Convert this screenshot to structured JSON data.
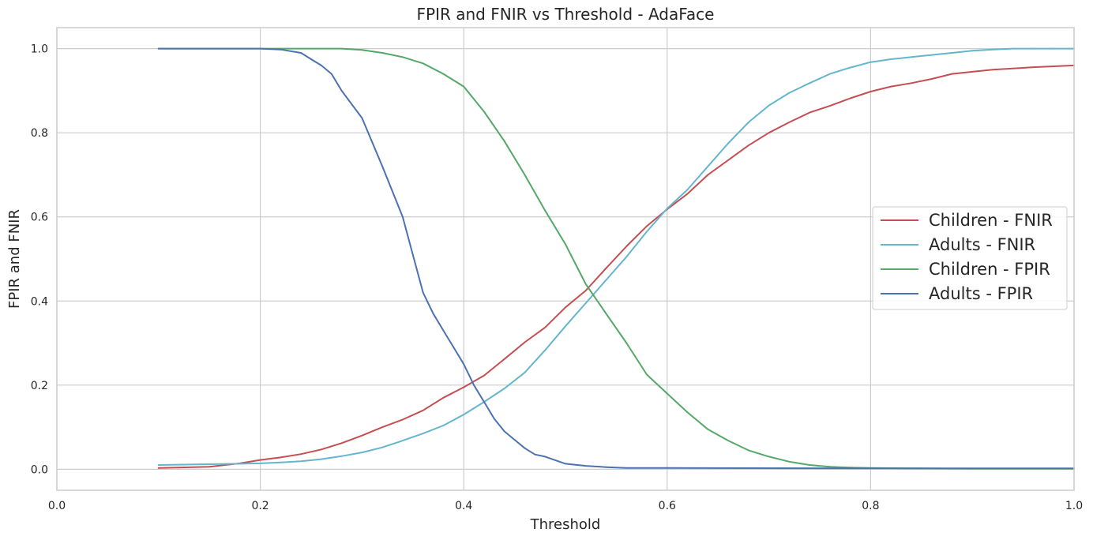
{
  "chart_data": {
    "type": "line",
    "title": "FPIR and FNIR vs Threshold - AdaFace",
    "xlabel": "Threshold",
    "ylabel": "FPIR and FNIR",
    "xlim": [
      0.0,
      1.0
    ],
    "ylim": [
      -0.05,
      1.05
    ],
    "xticks": [
      "0.0",
      "0.2",
      "0.4",
      "0.6",
      "0.8",
      "1.0"
    ],
    "yticks": [
      "0.0",
      "0.2",
      "0.4",
      "0.6",
      "0.8",
      "1.0"
    ],
    "grid": true,
    "legend_position": "center-right",
    "series": [
      {
        "name": "Children - FNIR",
        "color": "#c44e52",
        "x": [
          0.1,
          0.15,
          0.18,
          0.2,
          0.22,
          0.24,
          0.26,
          0.28,
          0.3,
          0.32,
          0.34,
          0.36,
          0.38,
          0.4,
          0.42,
          0.44,
          0.46,
          0.48,
          0.5,
          0.52,
          0.54,
          0.56,
          0.58,
          0.6,
          0.62,
          0.64,
          0.66,
          0.68,
          0.7,
          0.72,
          0.74,
          0.76,
          0.78,
          0.8,
          0.82,
          0.84,
          0.86,
          0.88,
          0.9,
          0.92,
          0.94,
          0.96,
          0.98,
          1.0
        ],
        "y": [
          0.003,
          0.006,
          0.014,
          0.022,
          0.028,
          0.036,
          0.047,
          0.062,
          0.08,
          0.1,
          0.118,
          0.14,
          0.17,
          0.195,
          0.223,
          0.262,
          0.302,
          0.337,
          0.385,
          0.425,
          0.478,
          0.53,
          0.578,
          0.618,
          0.655,
          0.7,
          0.735,
          0.77,
          0.8,
          0.825,
          0.848,
          0.864,
          0.882,
          0.898,
          0.91,
          0.918,
          0.928,
          0.94,
          0.945,
          0.95,
          0.953,
          0.956,
          0.958,
          0.96
        ]
      },
      {
        "name": "Adults - FNIR",
        "color": "#64b5cd",
        "x": [
          0.1,
          0.15,
          0.18,
          0.2,
          0.22,
          0.24,
          0.26,
          0.28,
          0.3,
          0.32,
          0.34,
          0.36,
          0.38,
          0.4,
          0.42,
          0.44,
          0.46,
          0.48,
          0.5,
          0.52,
          0.54,
          0.56,
          0.58,
          0.6,
          0.62,
          0.64,
          0.66,
          0.68,
          0.7,
          0.72,
          0.74,
          0.76,
          0.78,
          0.8,
          0.82,
          0.84,
          0.86,
          0.88,
          0.9,
          0.92,
          0.94,
          0.96,
          0.98,
          1.0
        ],
        "y": [
          0.01,
          0.012,
          0.013,
          0.014,
          0.016,
          0.019,
          0.024,
          0.031,
          0.04,
          0.052,
          0.068,
          0.085,
          0.104,
          0.13,
          0.16,
          0.192,
          0.23,
          0.283,
          0.34,
          0.395,
          0.45,
          0.505,
          0.565,
          0.62,
          0.665,
          0.72,
          0.775,
          0.825,
          0.865,
          0.895,
          0.918,
          0.94,
          0.955,
          0.968,
          0.975,
          0.98,
          0.985,
          0.99,
          0.995,
          0.998,
          1.0,
          1.0,
          1.0,
          1.0
        ]
      },
      {
        "name": "Children - FPIR",
        "color": "#55a868",
        "x": [
          0.1,
          0.2,
          0.25,
          0.28,
          0.3,
          0.32,
          0.34,
          0.36,
          0.38,
          0.4,
          0.42,
          0.44,
          0.46,
          0.48,
          0.5,
          0.52,
          0.54,
          0.56,
          0.58,
          0.6,
          0.62,
          0.64,
          0.66,
          0.68,
          0.7,
          0.72,
          0.74,
          0.76,
          0.78,
          0.8,
          0.85,
          0.9,
          1.0
        ],
        "y": [
          1.0,
          1.0,
          1.0,
          1.0,
          0.997,
          0.99,
          0.98,
          0.965,
          0.94,
          0.91,
          0.85,
          0.78,
          0.7,
          0.615,
          0.535,
          0.44,
          0.37,
          0.3,
          0.225,
          0.18,
          0.135,
          0.095,
          0.068,
          0.045,
          0.03,
          0.018,
          0.01,
          0.006,
          0.004,
          0.003,
          0.002,
          0.001,
          0.001
        ]
      },
      {
        "name": "Adults - FPIR",
        "color": "#4c72b0",
        "x": [
          0.1,
          0.2,
          0.22,
          0.24,
          0.25,
          0.26,
          0.27,
          0.28,
          0.3,
          0.32,
          0.34,
          0.35,
          0.36,
          0.37,
          0.38,
          0.39,
          0.4,
          0.41,
          0.42,
          0.43,
          0.44,
          0.45,
          0.46,
          0.47,
          0.48,
          0.5,
          0.52,
          0.54,
          0.56,
          0.6,
          0.8,
          1.0
        ],
        "y": [
          1.0,
          1.0,
          0.998,
          0.99,
          0.975,
          0.96,
          0.94,
          0.9,
          0.835,
          0.72,
          0.6,
          0.51,
          0.42,
          0.37,
          0.33,
          0.29,
          0.25,
          0.2,
          0.16,
          0.12,
          0.09,
          0.07,
          0.05,
          0.035,
          0.03,
          0.013,
          0.008,
          0.005,
          0.003,
          0.003,
          0.002,
          0.002
        ]
      }
    ]
  }
}
